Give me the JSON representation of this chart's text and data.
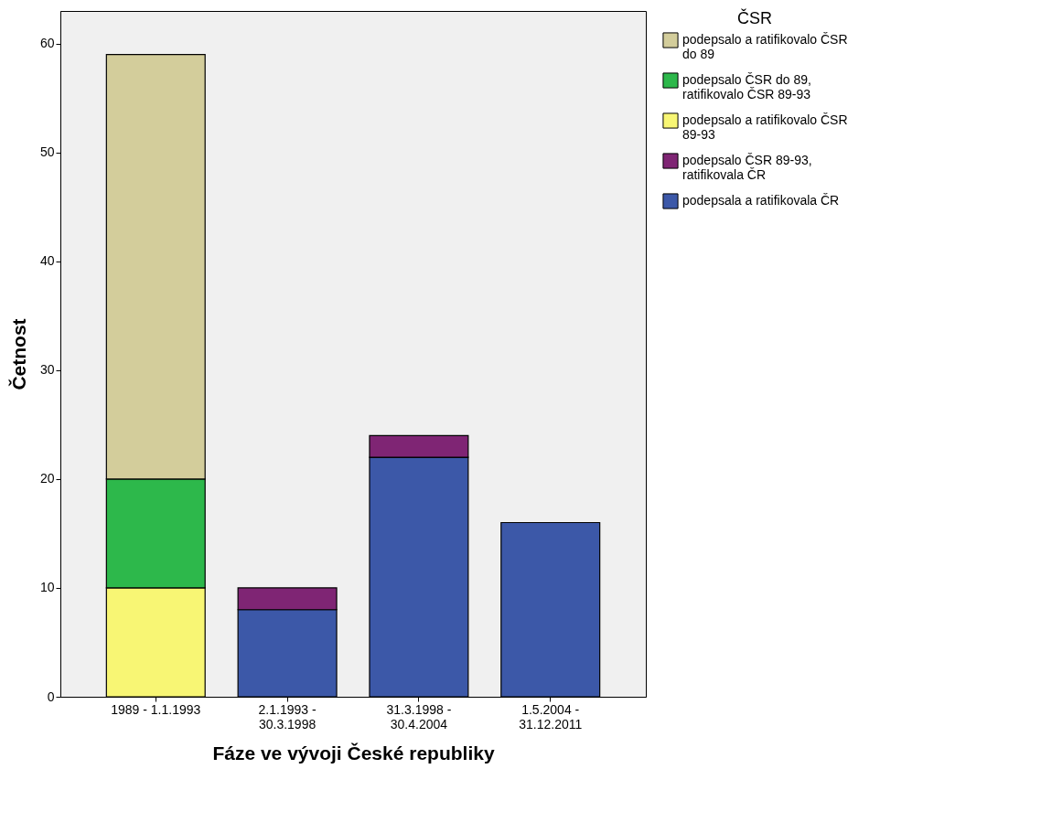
{
  "chart_data": {
    "type": "bar",
    "stacked": true,
    "xlabel": "Fáze ve vývoji České republiky",
    "ylabel": "Četnost",
    "legend_title": "ČSR",
    "categories": [
      "1989 - 1.1.1993",
      "2.1.1993 - 30.3.1998",
      "31.3.1998 - 30.4.2004",
      "1.5.2004 - 31.12.2011"
    ],
    "series": [
      {
        "name": "podepsala a ratifikovala ČR",
        "color": "#3c58a8",
        "values": [
          0,
          8,
          22,
          16
        ]
      },
      {
        "name": "podepsalo ČSR 89-93, ratifikovala ČR",
        "color": "#7f2574",
        "values": [
          0,
          2,
          2,
          0
        ]
      },
      {
        "name": "podepsalo a ratifikovalo ČSR 89-93",
        "color": "#f8f674",
        "values": [
          10,
          0,
          0,
          0
        ]
      },
      {
        "name": "podepsalo ČSR do 89, ratifikovalo ČSR 89-93",
        "color": "#2db84b",
        "values": [
          10,
          0,
          0,
          0
        ]
      },
      {
        "name": "podepsalo a ratifikovalo ČSR do 89",
        "color": "#d3cd9b",
        "values": [
          39,
          0,
          0,
          0
        ]
      }
    ],
    "ylim": [
      0,
      63
    ],
    "yticks": [
      0,
      10,
      20,
      30,
      40,
      50,
      60
    ],
    "grid": false,
    "legend": "top right"
  }
}
